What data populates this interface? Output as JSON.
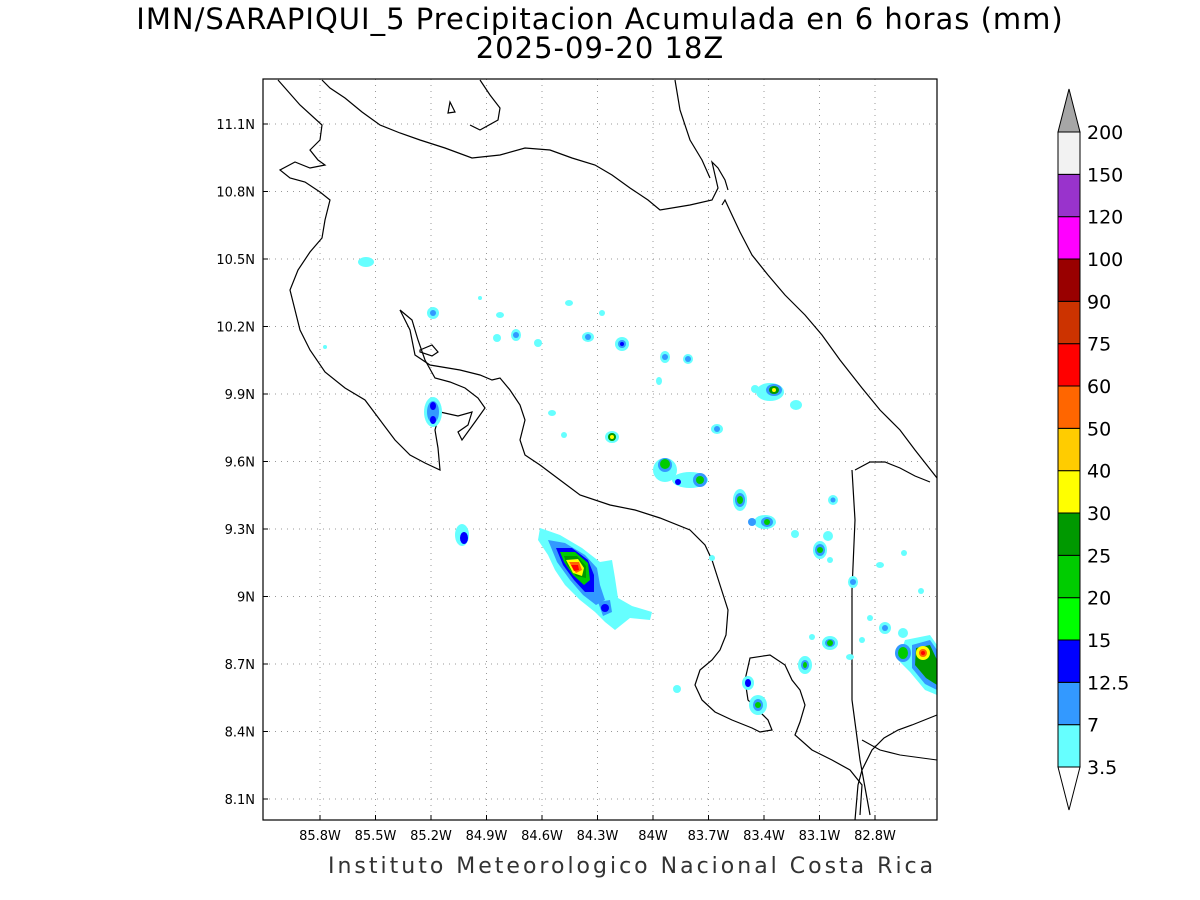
{
  "title": {
    "line1": "IMN/SARAPIQUI_5 Precipitacion Acumulada en 6 horas (mm)",
    "line2": "2025-09-20 18Z"
  },
  "footer": "Instituto Meteorologico Nacional Costa Rica",
  "map": {
    "lon_labels": [
      "85.8W",
      "85.5W",
      "85.2W",
      "84.9W",
      "84.6W",
      "84.3W",
      "84W",
      "83.7W",
      "83.4W",
      "83.1W",
      "82.8W"
    ],
    "lat_labels": [
      "11.1N",
      "10.8N",
      "10.5N",
      "10.2N",
      "9.9N",
      "9.6N",
      "9.3N",
      "9N",
      "8.7N",
      "8.4N",
      "8.1N"
    ],
    "grid": "dotted",
    "region": "Costa Rica"
  },
  "colorbar": {
    "levels": [
      "3.5",
      "7",
      "12.5",
      "15",
      "20",
      "25",
      "30",
      "40",
      "50",
      "60",
      "75",
      "90",
      "100",
      "120",
      "150",
      "200"
    ],
    "colors": [
      "#66ffff",
      "#3399ff",
      "#0000ff",
      "#00ff00",
      "#00cc00",
      "#009900",
      "#ffff00",
      "#ffcc00",
      "#ff6600",
      "#ff0000",
      "#cc3300",
      "#990000",
      "#ff00ff",
      "#9933cc",
      "#f2f2f2",
      "#a6a6a6"
    ],
    "ends": "triangular"
  }
}
